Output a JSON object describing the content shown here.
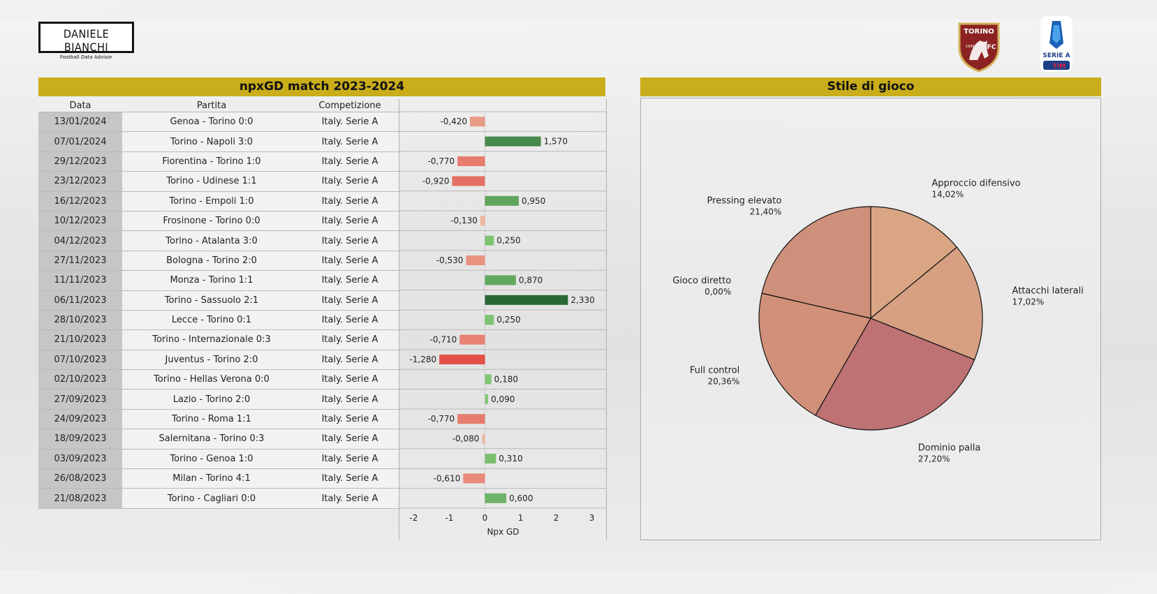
{
  "brand": {
    "name": "DANIELE BIANCHI",
    "subtitle": "Football Data Advisor"
  },
  "club_crest": {
    "icon": "torino-fc-crest-icon",
    "text": "TORINO",
    "year": "1906",
    "fc": "FC",
    "color": "#8b2323"
  },
  "league_logo": {
    "icon": "serie-a-logo-icon",
    "text": "SERIE A",
    "sponsor": "TIM",
    "color": "#1d5fb8"
  },
  "left_panel": {
    "title": "npxGD match 2023-2024",
    "headers": {
      "date": "Data",
      "match": "Partita",
      "competition": "Competizione"
    }
  },
  "right_panel": {
    "title": "Stile di gioco"
  },
  "colors": {
    "header_gold": "#c9ad1a"
  },
  "chart_data": [
    {
      "type": "bar",
      "orientation": "horizontal",
      "xlabel": "Npx GD",
      "xlim": [
        -2.4,
        3.4
      ],
      "xticks": [
        "-2",
        "-1",
        "0",
        "1",
        "2",
        "3"
      ],
      "xtick_values": [
        -2,
        -1,
        0,
        1,
        2,
        3
      ],
      "rows": [
        {
          "date": "13/01/2024",
          "match": "Genoa - Torino 0:0",
          "competition": "Italy. Serie A",
          "value": -0.42,
          "label": "-0,420"
        },
        {
          "date": "07/01/2024",
          "match": "Torino - Napoli 3:0",
          "competition": "Italy. Serie A",
          "value": 1.57,
          "label": "1,570"
        },
        {
          "date": "29/12/2023",
          "match": "Fiorentina - Torino 1:0",
          "competition": "Italy. Serie A",
          "value": -0.77,
          "label": "-0,770"
        },
        {
          "date": "23/12/2023",
          "match": "Torino - Udinese 1:1",
          "competition": "Italy. Serie A",
          "value": -0.92,
          "label": "-0,920"
        },
        {
          "date": "16/12/2023",
          "match": "Torino - Empoli 1:0",
          "competition": "Italy. Serie A",
          "value": 0.95,
          "label": "0,950"
        },
        {
          "date": "10/12/2023",
          "match": "Frosinone - Torino 0:0",
          "competition": "Italy. Serie A",
          "value": -0.13,
          "label": "-0,130"
        },
        {
          "date": "04/12/2023",
          "match": "Torino - Atalanta 3:0",
          "competition": "Italy. Serie A",
          "value": 0.25,
          "label": "0,250"
        },
        {
          "date": "27/11/2023",
          "match": "Bologna - Torino 2:0",
          "competition": "Italy. Serie A",
          "value": -0.53,
          "label": "-0,530"
        },
        {
          "date": "11/11/2023",
          "match": "Monza - Torino 1:1",
          "competition": "Italy. Serie A",
          "value": 0.87,
          "label": "0,870"
        },
        {
          "date": "06/11/2023",
          "match": "Torino - Sassuolo 2:1",
          "competition": "Italy. Serie A",
          "value": 2.33,
          "label": "2,330"
        },
        {
          "date": "28/10/2023",
          "match": "Lecce - Torino 0:1",
          "competition": "Italy. Serie A",
          "value": 0.25,
          "label": "0,250"
        },
        {
          "date": "21/10/2023",
          "match": "Torino - Internazionale 0:3",
          "competition": "Italy. Serie A",
          "value": -0.71,
          "label": "-0,710"
        },
        {
          "date": "07/10/2023",
          "match": "Juventus - Torino 2:0",
          "competition": "Italy. Serie A",
          "value": -1.28,
          "label": "-1,280"
        },
        {
          "date": "02/10/2023",
          "match": "Torino - Hellas Verona 0:0",
          "competition": "Italy. Serie A",
          "value": 0.18,
          "label": "0,180"
        },
        {
          "date": "27/09/2023",
          "match": "Lazio - Torino 2:0",
          "competition": "Italy. Serie A",
          "value": 0.09,
          "label": "0,090"
        },
        {
          "date": "24/09/2023",
          "match": "Torino - Roma 1:1",
          "competition": "Italy. Serie A",
          "value": -0.77,
          "label": "-0,770"
        },
        {
          "date": "18/09/2023",
          "match": "Salernitana - Torino 0:3",
          "competition": "Italy. Serie A",
          "value": -0.08,
          "label": "-0,080"
        },
        {
          "date": "03/09/2023",
          "match": "Torino - Genoa 1:0",
          "competition": "Italy. Serie A",
          "value": 0.31,
          "label": "0,310"
        },
        {
          "date": "26/08/2023",
          "match": "Milan - Torino 4:1",
          "competition": "Italy. Serie A",
          "value": -0.61,
          "label": "-0,610"
        },
        {
          "date": "21/08/2023",
          "match": "Torino - Cagliari 0:0",
          "competition": "Italy. Serie A",
          "value": 0.6,
          "label": "0,600"
        }
      ]
    },
    {
      "type": "pie",
      "title": "Stile di gioco",
      "slices": [
        {
          "label": "Approccio difensivo",
          "pct_label": "14,02%",
          "value": 14.02,
          "color": "#d9a583"
        },
        {
          "label": "Attacchi laterali",
          "pct_label": "17,02%",
          "value": 17.02,
          "color": "#d7a083"
        },
        {
          "label": "Dominio palla",
          "pct_label": "27,20%",
          "value": 27.2,
          "color": "#bf7274"
        },
        {
          "label": "Full control",
          "pct_label": "20,36%",
          "value": 20.36,
          "color": "#d19079"
        },
        {
          "label": "Gioco diretto",
          "pct_label": "0,00%",
          "value": 0.0,
          "color": "#d08f7a"
        },
        {
          "label": "Pressing elevato",
          "pct_label": "21,40%",
          "value": 21.4,
          "color": "#cf907b"
        }
      ]
    }
  ]
}
